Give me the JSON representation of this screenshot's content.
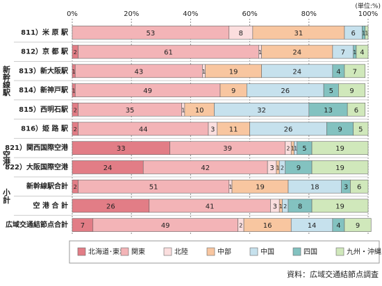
{
  "chart_data": {
    "type": "stacked-bar-horizontal",
    "unit_note": "(単位:%)",
    "source": "資料：広域交通結節点調査",
    "categories": [
      "811）米 原 駅",
      "812）京 都 駅",
      "813）新大阪駅",
      "814）新神戸駅",
      "815）西明石駅",
      "816）姫 路 駅",
      "821）関西国際空港",
      "822）大阪国際空港",
      "新幹線駅合計",
      "空 港 合 計",
      "広域交通結節点合計"
    ],
    "groups": [
      {
        "label": "新幹線駅",
        "from": 2,
        "to": 3
      },
      {
        "label": "空港",
        "from": 6,
        "to": 7
      },
      {
        "label": "小計",
        "from": 8,
        "to": 9
      }
    ],
    "series": [
      {
        "name": "北海道･東北",
        "color": "#e27d86",
        "values": [
          0,
          2,
          1,
          1,
          2,
          2,
          33,
          24,
          2,
          26,
          7
        ]
      },
      {
        "name": "関東",
        "color": "#f3b4b7",
        "values": [
          53,
          61,
          43,
          49,
          35,
          44,
          39,
          42,
          51,
          41,
          49
        ]
      },
      {
        "name": "北陸",
        "color": "#fbdede",
        "values": [
          8,
          1,
          1,
          0,
          1,
          3,
          2,
          3,
          1,
          3,
          2
        ]
      },
      {
        "name": "中部",
        "color": "#f8c6a0",
        "values": [
          31,
          24,
          19,
          9,
          10,
          11,
          1,
          1,
          19,
          1,
          16
        ]
      },
      {
        "name": "中国",
        "color": "#c6e1ed",
        "values": [
          6,
          7,
          24,
          26,
          32,
          26,
          1,
          2,
          18,
          2,
          14
        ]
      },
      {
        "name": "四国",
        "color": "#83c2c0",
        "values": [
          1,
          1,
          4,
          5,
          13,
          9,
          5,
          9,
          3,
          8,
          4
        ]
      },
      {
        "name": "九州・沖縄",
        "color": "#d0e8bb",
        "values": [
          1,
          4,
          7,
          9,
          6,
          5,
          19,
          19,
          6,
          19,
          9
        ]
      }
    ],
    "xlim": [
      0,
      100
    ],
    "xticks": [
      {
        "value": 0,
        "label": "0%"
      },
      {
        "value": 20,
        "label": "20%"
      },
      {
        "value": 40,
        "label": "40%"
      },
      {
        "value": 60,
        "label": "60%"
      },
      {
        "value": 80,
        "label": "80%"
      },
      {
        "value": 100,
        "label": "100%"
      }
    ],
    "grid": true
  }
}
